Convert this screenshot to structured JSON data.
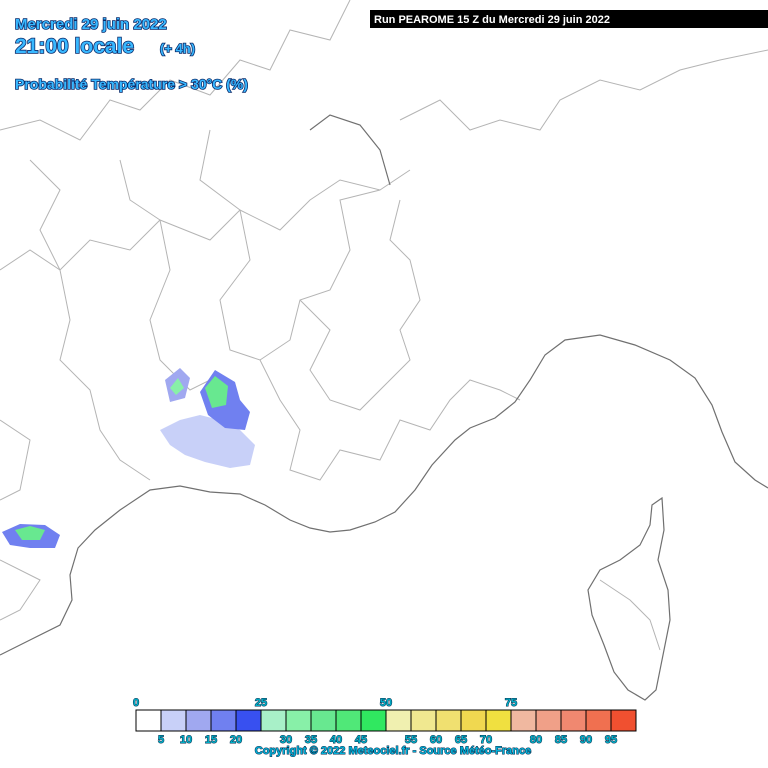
{
  "header": {
    "date": "Mercredi 29 juin 2022",
    "time": "21:00 locale",
    "offset": "(+ 4h)",
    "product": "Probabilité Température > 30°C (%)"
  },
  "run_banner": "Run PEAROME 15 Z du Mercredi 29 juin 2022",
  "colorbar": {
    "colors": [
      "#ffffff",
      "#c8d0f8",
      "#a0a8f0",
      "#7080f0",
      "#3850f0",
      "#a8f0c8",
      "#88f0a8",
      "#68e890",
      "#50e878",
      "#30e860",
      "#f0f0b0",
      "#f0e890",
      "#f0e070",
      "#f0d850",
      "#f0e040",
      "#f0b8a0",
      "#f0a088",
      "#f08870",
      "#f07050",
      "#f05030"
    ],
    "upper_labels": [
      0,
      25,
      50,
      75
    ],
    "lower_labels": [
      5,
      10,
      15,
      20,
      30,
      35,
      40,
      45,
      55,
      60,
      65,
      70,
      80,
      85,
      90,
      95
    ]
  },
  "copyright": "Copyright © 2022 Meteociel.fr - Source Météo-France"
}
